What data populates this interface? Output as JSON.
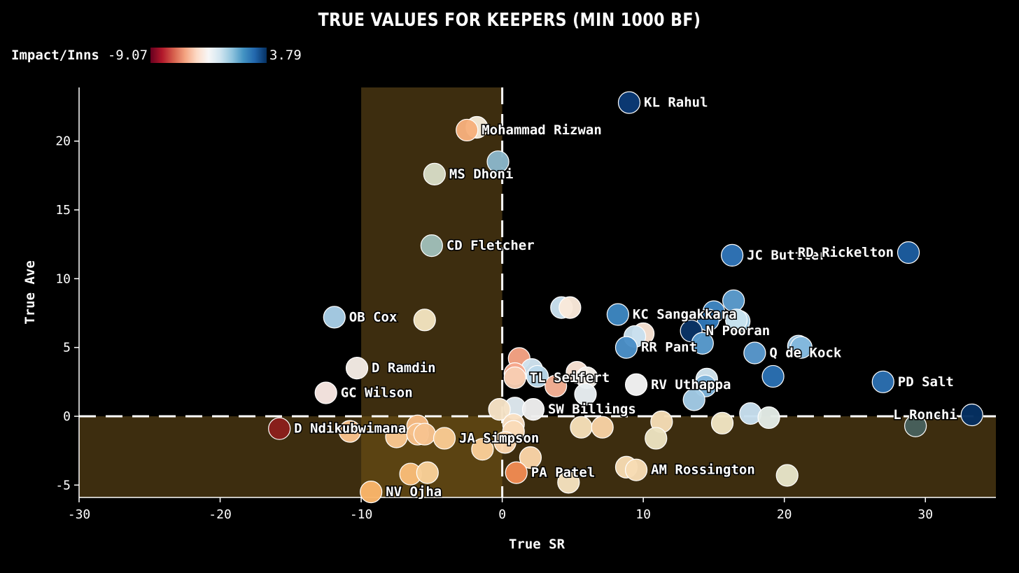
{
  "chart_data": {
    "type": "scatter",
    "title": "TRUE VALUES FOR KEEPERS (MIN 1000 BF)",
    "xlabel": "True SR",
    "ylabel": "True Ave",
    "xlim": [
      -30,
      35
    ],
    "ylim": [
      -5.9,
      23.9
    ],
    "xticks": [
      -30,
      -20,
      -10,
      0,
      10,
      20,
      30
    ],
    "yticks": [
      -5,
      0,
      5,
      10,
      15,
      20
    ],
    "color_legend": {
      "title": "Impact/Inns",
      "min": "-9.07",
      "max": "3.79"
    },
    "colors": {
      "background": "#000000",
      "shade": "#3d2d0f",
      "shade_overlap": "#5b4312"
    },
    "points": [
      {
        "x": 9,
        "y": 22.8,
        "color": "#0b3a75",
        "label": "KL Rahul"
      },
      {
        "x": -1.8,
        "y": 21.0,
        "color": "#f4ead8",
        "label": ""
      },
      {
        "x": -2.5,
        "y": 20.8,
        "color": "#f6b07c",
        "label": "Mohammad Rizwan"
      },
      {
        "x": -0.3,
        "y": 18.5,
        "color": "#8ab6c9",
        "label": ""
      },
      {
        "x": -4.8,
        "y": 17.6,
        "color": "#d7dcc5",
        "label": "MS Dhoni"
      },
      {
        "x": -5,
        "y": 12.4,
        "color": "#9fbeb8",
        "label": "CD Fletcher"
      },
      {
        "x": 16.3,
        "y": 11.7,
        "color": "#2f74b7",
        "label": "JC Buttler"
      },
      {
        "x": 28.8,
        "y": 11.9,
        "color": "#1c5c9e",
        "label": "RD Rickelton"
      },
      {
        "x": -11.9,
        "y": 7.2,
        "color": "#a7cde6",
        "label": "OB Cox"
      },
      {
        "x": -5.5,
        "y": 7.0,
        "color": "#f2e3bf",
        "label": ""
      },
      {
        "x": 4.2,
        "y": 7.9,
        "color": "#c9e1ef",
        "label": ""
      },
      {
        "x": 4.8,
        "y": 7.9,
        "color": "#fae9da",
        "label": ""
      },
      {
        "x": 8.2,
        "y": 7.4,
        "color": "#3d86c0",
        "label": "KC Sangakkara"
      },
      {
        "x": 16.4,
        "y": 8.4,
        "color": "#5c9ccd",
        "label": ""
      },
      {
        "x": 15,
        "y": 7.6,
        "color": "#3f86c2",
        "label": ""
      },
      {
        "x": 14.6,
        "y": 7.0,
        "color": "#3077b8",
        "label": ""
      },
      {
        "x": 13.4,
        "y": 6.2,
        "color": "#0a3466",
        "label": "N Pooran"
      },
      {
        "x": 16.8,
        "y": 6.9,
        "color": "#a8cfe6",
        "label": ""
      },
      {
        "x": 16.6,
        "y": 7.0,
        "color": "#c7e1ee",
        "label": ""
      },
      {
        "x": 14.2,
        "y": 5.3,
        "color": "#5a9cce",
        "label": ""
      },
      {
        "x": 10,
        "y": 6.0,
        "color": "#f8e3d4",
        "label": ""
      },
      {
        "x": 9.4,
        "y": 5.8,
        "color": "#c8e0ee",
        "label": ""
      },
      {
        "x": 8.8,
        "y": 5.0,
        "color": "#4b8fc7",
        "label": "RR Pant"
      },
      {
        "x": 17.9,
        "y": 4.6,
        "color": "#5998cc",
        "label": "Q de Kock"
      },
      {
        "x": 21,
        "y": 5.1,
        "color": "#a0c8e4",
        "label": ""
      },
      {
        "x": 21.2,
        "y": 5.0,
        "color": "#82b8dd",
        "label": ""
      },
      {
        "x": -10.3,
        "y": 3.5,
        "color": "#f4ebe4",
        "label": "D Ramdin"
      },
      {
        "x": 1.2,
        "y": 4.2,
        "color": "#f5a384",
        "label": ""
      },
      {
        "x": 2.1,
        "y": 3.4,
        "color": "#cfe3ef",
        "label": ""
      },
      {
        "x": 2.5,
        "y": 2.9,
        "color": "#b9d8ea",
        "label": ""
      },
      {
        "x": 0.9,
        "y": 3.1,
        "color": "#f6a88d",
        "label": ""
      },
      {
        "x": 0.9,
        "y": 2.8,
        "color": "#f8cdb3",
        "label": "TL Seifert"
      },
      {
        "x": 5.3,
        "y": 3.2,
        "color": "#fae4d6",
        "label": ""
      },
      {
        "x": 6.0,
        "y": 2.8,
        "color": "#f4efe9",
        "label": ""
      },
      {
        "x": 3.8,
        "y": 2.2,
        "color": "#f6b296",
        "label": ""
      },
      {
        "x": 5.9,
        "y": 1.6,
        "color": "#e8eef2",
        "label": ""
      },
      {
        "x": 9.5,
        "y": 2.3,
        "color": "#f4f4f4",
        "label": "RV Uthappa"
      },
      {
        "x": 14.5,
        "y": 2.7,
        "color": "#d2e5f0",
        "label": ""
      },
      {
        "x": 14.4,
        "y": 2.2,
        "color": "#7eb4da",
        "label": ""
      },
      {
        "x": 13.6,
        "y": 1.2,
        "color": "#a2cae5",
        "label": ""
      },
      {
        "x": 19.2,
        "y": 2.9,
        "color": "#2a6fb2",
        "label": ""
      },
      {
        "x": 27,
        "y": 2.5,
        "color": "#2b6eb0",
        "label": "PD Salt"
      },
      {
        "x": -12.5,
        "y": 1.7,
        "color": "#f8e7e2",
        "label": "GC Wilson"
      },
      {
        "x": 0.9,
        "y": 0.6,
        "color": "#dfe9ef",
        "label": ""
      },
      {
        "x": -0.2,
        "y": 0.5,
        "color": "#f5e2c6",
        "label": ""
      },
      {
        "x": 2.2,
        "y": 0.5,
        "color": "#eeeeee",
        "label": "SW Billings"
      },
      {
        "x": 17.6,
        "y": 0.2,
        "color": "#c7dfee",
        "label": ""
      },
      {
        "x": 18.9,
        "y": -0.1,
        "color": "#e3ebe6",
        "label": ""
      },
      {
        "x": 33.3,
        "y": 0.1,
        "color": "#053061",
        "label": "L Ronchi"
      },
      {
        "x": 29.3,
        "y": -0.7,
        "color": "#47605c",
        "label": ""
      },
      {
        "x": -15.8,
        "y": -0.9,
        "color": "#8a1f1c",
        "label": "D Ndikubwimana"
      },
      {
        "x": -10.8,
        "y": -1.1,
        "color": "#f8c28c",
        "label": ""
      },
      {
        "x": -7.5,
        "y": -1.5,
        "color": "#f8c690",
        "label": ""
      },
      {
        "x": -6.0,
        "y": -0.7,
        "color": "#f6bc86",
        "label": ""
      },
      {
        "x": -6.0,
        "y": -1.3,
        "color": "#f6c08a",
        "label": ""
      },
      {
        "x": -5.5,
        "y": -1.3,
        "color": "#f7c38f",
        "label": ""
      },
      {
        "x": -4.1,
        "y": -1.6,
        "color": "#f8ca93",
        "label": "JA Simpson"
      },
      {
        "x": 0.8,
        "y": -0.6,
        "color": "#f9dfc1",
        "label": ""
      },
      {
        "x": 0.8,
        "y": -1.1,
        "color": "#fadbb8",
        "label": ""
      },
      {
        "x": 0.2,
        "y": -1.9,
        "color": "#f9d5ad",
        "label": ""
      },
      {
        "x": -1.4,
        "y": -2.4,
        "color": "#f9cd98",
        "label": ""
      },
      {
        "x": 2,
        "y": -3.0,
        "color": "#f9d4a7",
        "label": ""
      },
      {
        "x": 5.6,
        "y": -0.8,
        "color": "#f5dfb8",
        "label": ""
      },
      {
        "x": 7.1,
        "y": -0.8,
        "color": "#f7d2a4",
        "label": ""
      },
      {
        "x": 11.3,
        "y": -0.4,
        "color": "#f4dcb5",
        "label": ""
      },
      {
        "x": 10.9,
        "y": -1.6,
        "color": "#ebe2c0",
        "label": ""
      },
      {
        "x": 15.6,
        "y": -0.5,
        "color": "#f0e4c2",
        "label": ""
      },
      {
        "x": 8.8,
        "y": -3.7,
        "color": "#f6dbb2",
        "label": ""
      },
      {
        "x": 9.5,
        "y": -3.9,
        "color": "#f7dcb4",
        "label": "AM Rossington"
      },
      {
        "x": 20.2,
        "y": -4.3,
        "color": "#e6e4c8",
        "label": ""
      },
      {
        "x": 1,
        "y": -4.1,
        "color": "#f08a52",
        "label": "PA Patel"
      },
      {
        "x": 4.7,
        "y": -4.8,
        "color": "#f4e1be",
        "label": ""
      },
      {
        "x": -6.5,
        "y": -4.2,
        "color": "#f8bc78",
        "label": ""
      },
      {
        "x": -5.3,
        "y": -4.1,
        "color": "#f8cf98",
        "label": ""
      },
      {
        "x": -9.3,
        "y": -5.5,
        "color": "#f9b56a",
        "label": "NV Ojha"
      }
    ]
  }
}
